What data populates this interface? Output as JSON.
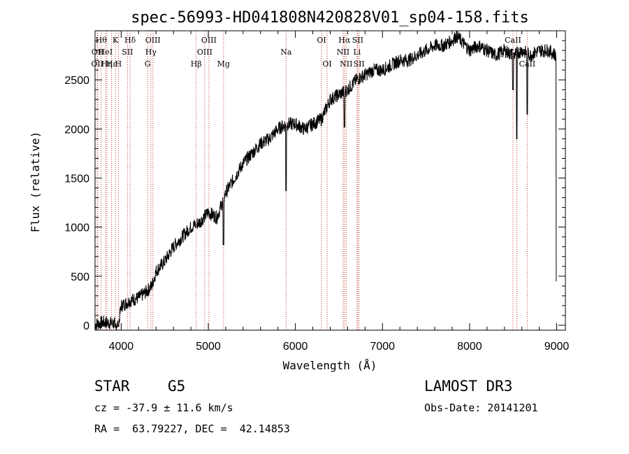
{
  "chart_data": {
    "type": "line",
    "title": "spec-56993-HD041808N420828V01_sp04-158.fits",
    "xlabel": "Wavelength (Å)",
    "ylabel": "Flux (relative)",
    "xlim": [
      3700,
      9100
    ],
    "ylim": [
      -50,
      3000
    ],
    "x_ticks": [
      4000,
      5000,
      6000,
      7000,
      8000,
      9000
    ],
    "y_ticks": [
      0,
      500,
      1000,
      1500,
      2000,
      2500
    ],
    "series": [
      {
        "name": "flux",
        "x": [
          3700,
          3800,
          3900,
          3970,
          4000,
          4050,
          4100,
          4200,
          4300,
          4350,
          4400,
          4500,
          4600,
          4700,
          4800,
          4900,
          5000,
          5100,
          5200,
          5300,
          5400,
          5500,
          5600,
          5700,
          5800,
          5900,
          6000,
          6100,
          6200,
          6300,
          6400,
          6500,
          6600,
          6700,
          6800,
          6900,
          7000,
          7100,
          7200,
          7300,
          7400,
          7500,
          7600,
          7700,
          7800,
          7850,
          7900,
          8000,
          8100,
          8200,
          8300,
          8400,
          8500,
          8600,
          8700,
          8800,
          8900,
          9000
        ],
        "y": [
          10,
          30,
          20,
          10,
          200,
          220,
          250,
          280,
          350,
          400,
          550,
          650,
          800,
          900,
          1000,
          1050,
          1150,
          1100,
          1350,
          1500,
          1650,
          1750,
          1850,
          1900,
          2000,
          2050,
          2050,
          2000,
          2050,
          2100,
          2300,
          2350,
          2400,
          2500,
          2550,
          2600,
          2600,
          2650,
          2700,
          2700,
          2750,
          2800,
          2850,
          2850,
          2900,
          2950,
          2900,
          2800,
          2850,
          2800,
          2750,
          2800,
          2750,
          2800,
          2750,
          2800,
          2800,
          2750
        ]
      }
    ],
    "absorption_dips": [
      {
        "x": 3933,
        "y": -20
      },
      {
        "x": 3968,
        "y": -10
      },
      {
        "x": 4861,
        "y": 1000
      },
      {
        "x": 5175,
        "y": 820
      },
      {
        "x": 5893,
        "y": 1370
      },
      {
        "x": 6563,
        "y": 2020
      },
      {
        "x": 8498,
        "y": 2400
      },
      {
        "x": 8542,
        "y": 1900
      },
      {
        "x": 8662,
        "y": 2150
      },
      {
        "x": 9000,
        "y": 450
      }
    ],
    "lines": [
      {
        "x": 3726,
        "label": "OII",
        "row": 2
      },
      {
        "x": 3730,
        "label": "OII",
        "row": 1
      },
      {
        "x": 3770,
        "label": "Hθ",
        "row": 0
      },
      {
        "x": 3835,
        "label": "Hη",
        "row": 2
      },
      {
        "x": 3820,
        "label": "HeI",
        "row": 1
      },
      {
        "x": 3889,
        "label": "Hε",
        "row": 2
      },
      {
        "x": 3934,
        "label": "K",
        "row": 0
      },
      {
        "x": 3968,
        "label": "H",
        "row": 2
      },
      {
        "x": 4072,
        "label": "SII",
        "row": 1
      },
      {
        "x": 4102,
        "label": "Hδ",
        "row": 0
      },
      {
        "x": 4304,
        "label": "G",
        "row": 2
      },
      {
        "x": 4341,
        "label": "Hγ",
        "row": 1
      },
      {
        "x": 4364,
        "label": "OIII",
        "row": 0
      },
      {
        "x": 4861,
        "label": "Hβ",
        "row": 2
      },
      {
        "x": 4959,
        "label": "OIII",
        "row": 1
      },
      {
        "x": 5007,
        "label": "OIII",
        "row": 0
      },
      {
        "x": 5175,
        "label": "Mg",
        "row": 2
      },
      {
        "x": 5893,
        "label": "Na",
        "row": 1
      },
      {
        "x": 6300,
        "label": "OI",
        "row": 0
      },
      {
        "x": 6364,
        "label": "OI",
        "row": 2
      },
      {
        "x": 6548,
        "label": "NII",
        "row": 1
      },
      {
        "x": 6563,
        "label": "Hα",
        "row": 0
      },
      {
        "x": 6583,
        "label": "NII",
        "row": 2
      },
      {
        "x": 6708,
        "label": "Li",
        "row": 1
      },
      {
        "x": 6716,
        "label": "SII",
        "row": 0
      },
      {
        "x": 6731,
        "label": "SII",
        "row": 2
      },
      {
        "x": 8498,
        "label": "CaII",
        "row": 0
      },
      {
        "x": 8542,
        "label": "CaII",
        "row": 1
      },
      {
        "x": 8662,
        "label": "CaII",
        "row": 2
      }
    ]
  },
  "info": {
    "object_class": "STAR",
    "subclass": "G5",
    "survey": "LAMOST DR3",
    "redshift_text": "cz = -37.9 ± 11.6 km/s",
    "obs_date": "Obs-Date: 20141201",
    "coords": "RA =  63.79227, DEC =  42.14853"
  }
}
